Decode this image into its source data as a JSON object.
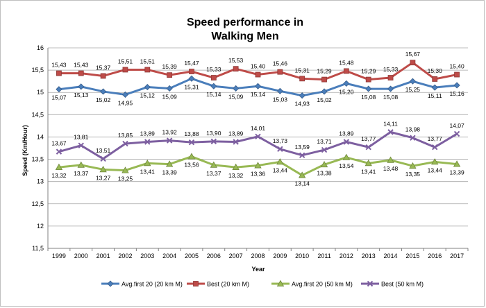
{
  "chart_data": {
    "type": "line",
    "title_lines": [
      "Speed performance in",
      "Walking Men"
    ],
    "xlabel": "Year",
    "ylabel": "Speed (Km/Hour)",
    "ylim": [
      11.5,
      16
    ],
    "yticks": [
      11.5,
      12,
      12.5,
      13,
      13.5,
      14,
      14.5,
      15,
      15.5,
      16
    ],
    "ytick_labels": [
      "11,5",
      "12",
      "12,5",
      "13",
      "13,5",
      "14",
      "14,5",
      "15",
      "15,5",
      "16"
    ],
    "grid": "horizontal",
    "legend_position": "bottom",
    "categories": [
      "1999",
      "2000",
      "2001",
      "2002",
      "2003",
      "2004",
      "2005",
      "2006",
      "2007",
      "2008",
      "2009",
      "2010",
      "2011",
      "2012",
      "2013",
      "2014",
      "2015",
      "2016",
      "2017"
    ],
    "series": [
      {
        "name": "Avg.first 20 (20 km M)",
        "color": "#4a7ebb",
        "marker": "diamond",
        "label_pos": "below",
        "values": [
          15.07,
          15.13,
          15.02,
          14.95,
          15.12,
          15.09,
          15.31,
          15.14,
          15.09,
          15.14,
          15.03,
          14.93,
          15.02,
          15.2,
          15.08,
          15.08,
          15.25,
          15.11,
          15.16
        ],
        "labels": [
          "15,07",
          "15,13",
          "15,02",
          "14,95",
          "15,12",
          "15,09",
          "15,31",
          "15,14",
          "15,09",
          "15,14",
          "15,03",
          "14,93",
          "15,02",
          "15,20",
          "15,08",
          "15,08",
          "15,25",
          "15,11",
          "15,16"
        ]
      },
      {
        "name": "Best (20 km M)",
        "color": "#be4b48",
        "marker": "square",
        "label_pos": "above",
        "values": [
          15.43,
          15.43,
          15.37,
          15.51,
          15.51,
          15.39,
          15.47,
          15.33,
          15.53,
          15.4,
          15.46,
          15.31,
          15.29,
          15.48,
          15.29,
          15.33,
          15.67,
          15.3,
          15.4
        ],
        "labels": [
          "15,43",
          "15,43",
          "15,37",
          "15,51",
          "15,51",
          "15,39",
          "15,47",
          "15,33",
          "15,53",
          "15,40",
          "15,46",
          "15,31",
          "15,29",
          "15,48",
          "15,29",
          "15,33",
          "15,67",
          "15,30",
          "15,40"
        ]
      },
      {
        "name": "Avg.first 20 (50 km M)",
        "color": "#98b954",
        "marker": "triangle",
        "label_pos": "below",
        "values": [
          13.32,
          13.37,
          13.27,
          13.25,
          13.41,
          13.39,
          13.56,
          13.37,
          13.32,
          13.36,
          13.44,
          13.14,
          13.38,
          13.54,
          13.41,
          13.48,
          13.35,
          13.44,
          13.39
        ],
        "labels": [
          "13,32",
          "13,37",
          "13,27",
          "13,25",
          "13,41",
          "13,39",
          "13,56",
          "13,37",
          "13,32",
          "13,36",
          "13,44",
          "13,14",
          "13,38",
          "13,54",
          "13,41",
          "13,48",
          "13,35",
          "13,44",
          "13,39"
        ]
      },
      {
        "name": "Best (50 km M)",
        "color": "#7d5fa0",
        "marker": "x",
        "label_pos": "above",
        "values": [
          13.67,
          13.81,
          13.51,
          13.85,
          13.89,
          13.92,
          13.88,
          13.9,
          13.89,
          14.01,
          13.73,
          13.59,
          13.71,
          13.89,
          13.77,
          14.11,
          13.98,
          13.77,
          14.07
        ],
        "labels": [
          "13,67",
          "13,81",
          "13,51",
          "13,85",
          "13,89",
          "13,92",
          "13,88",
          "13,90",
          "13,89",
          "14,01",
          "13,73",
          "13,59",
          "13,71",
          "13,89",
          "13,77",
          "14,11",
          "13,98",
          "13,77",
          "14,07"
        ]
      }
    ]
  }
}
